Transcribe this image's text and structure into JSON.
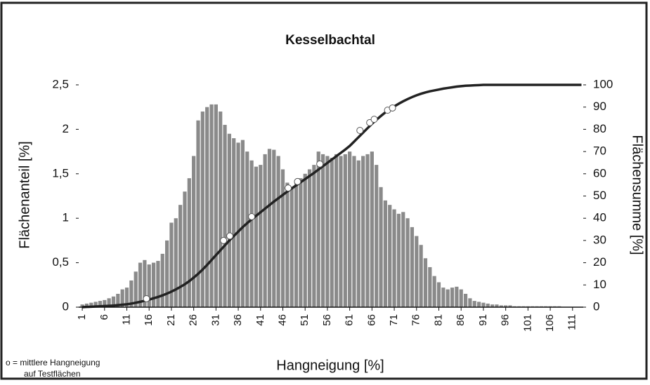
{
  "chart_data": {
    "type": "bar",
    "title": "Kesselbachtal",
    "xlabel": "Hangneigung [%]",
    "ylabel": "Flächenanteil [%]",
    "y2label": "Flächensumme [%]",
    "note": [
      "o = mittlere Hangneigung",
      "auf Testflächen"
    ],
    "x": [
      1,
      2,
      3,
      4,
      5,
      6,
      7,
      8,
      9,
      10,
      11,
      12,
      13,
      14,
      15,
      16,
      17,
      18,
      19,
      20,
      21,
      22,
      23,
      24,
      25,
      26,
      27,
      28,
      29,
      30,
      31,
      32,
      33,
      34,
      35,
      36,
      37,
      38,
      39,
      40,
      41,
      42,
      43,
      44,
      45,
      46,
      47,
      48,
      49,
      50,
      51,
      52,
      53,
      54,
      55,
      56,
      57,
      58,
      59,
      60,
      61,
      62,
      63,
      64,
      65,
      66,
      67,
      68,
      69,
      70,
      71,
      72,
      73,
      74,
      75,
      76,
      77,
      78,
      79,
      80,
      81,
      82,
      83,
      84,
      85,
      86,
      87,
      88,
      89,
      90,
      91,
      92,
      93,
      94,
      95,
      96,
      97,
      98,
      99,
      100,
      101,
      102,
      103,
      104,
      105,
      106,
      107,
      108,
      109,
      110,
      111,
      112,
      113
    ],
    "series": [
      {
        "type": "bar",
        "color": "#8a8a8a",
        "values": [
          0.03,
          0.04,
          0.05,
          0.06,
          0.07,
          0.08,
          0.1,
          0.12,
          0.15,
          0.2,
          0.22,
          0.3,
          0.4,
          0.5,
          0.53,
          0.48,
          0.5,
          0.52,
          0.6,
          0.75,
          0.95,
          1.0,
          1.15,
          1.3,
          1.45,
          1.7,
          2.1,
          2.2,
          2.25,
          2.28,
          2.28,
          2.2,
          2.05,
          1.95,
          1.9,
          1.85,
          1.88,
          1.75,
          1.65,
          1.58,
          1.6,
          1.72,
          1.78,
          1.77,
          1.7,
          1.55,
          1.4,
          1.35,
          1.4,
          1.45,
          1.5,
          1.55,
          1.6,
          1.75,
          1.72,
          1.7,
          1.68,
          1.72,
          1.7,
          1.72,
          1.75,
          1.7,
          1.65,
          1.7,
          1.72,
          1.75,
          1.6,
          1.35,
          1.2,
          1.15,
          1.1,
          1.05,
          1.07,
          1,
          0.9,
          0.8,
          0.7,
          0.55,
          0.45,
          0.35,
          0.28,
          0.22,
          0.2,
          0.22,
          0.23,
          0.2,
          0.15,
          0.1,
          0.07,
          0.06,
          0.05,
          0.04,
          0.03,
          0.03,
          0.02,
          0.02,
          0.02,
          0.01,
          0.01,
          0.01,
          0.01,
          0.01,
          0.01,
          0.01,
          0.01,
          0.01,
          0.01,
          0.01,
          0,
          0,
          0,
          0,
          0
        ]
      },
      {
        "type": "line",
        "axis": "y2",
        "color": "#222222",
        "values": [
          0,
          0.1,
          0.2,
          0.3,
          0.4,
          0.5,
          0.6,
          0.7,
          0.9,
          1.1,
          1.3,
          1.6,
          2,
          2.4,
          2.9,
          3.4,
          4,
          4.6,
          5.3,
          6.1,
          7,
          8,
          9.1,
          10.3,
          11.7,
          13.3,
          15,
          16.9,
          19,
          21.2,
          23.4,
          25.6,
          27.8,
          30,
          32,
          34,
          36,
          37.8,
          39.5,
          41.1,
          42.7,
          44.3,
          45.9,
          47.5,
          49,
          50.5,
          52,
          53.4,
          54.8,
          56.2,
          57.6,
          59,
          60.4,
          61.9,
          63.4,
          64.9,
          66.4,
          67.9,
          69.4,
          70.9,
          72.5,
          74.5,
          76.5,
          78.5,
          80.5,
          82.5,
          84.3,
          86,
          87.6,
          89,
          90.3,
          91.5,
          92.6,
          93.6,
          94.5,
          95.3,
          96,
          96.6,
          97.1,
          97.5,
          97.9,
          98.3,
          98.6,
          98.9,
          99.2,
          99.4,
          99.6,
          99.7,
          99.8,
          99.9,
          100,
          100,
          100,
          100,
          100,
          100,
          100,
          100,
          100,
          100,
          100,
          100,
          100,
          100,
          100,
          100,
          100,
          100,
          100,
          100,
          100,
          100,
          100
        ]
      },
      {
        "type": "scatter",
        "axis": "y2",
        "color": "#ffffff",
        "x": [
          15.4,
          32.7,
          34.1,
          39,
          47.2,
          49.3,
          54.3,
          63.3,
          65.5,
          66.5,
          69.5,
          70.6
        ],
        "values": [
          3.8,
          30,
          32,
          40.7,
          53.6,
          56.5,
          64.4,
          79.5,
          83,
          84.5,
          88.6,
          89.6
        ]
      }
    ],
    "xlim": [
      0.2,
      113.4
    ],
    "xticks": [
      1,
      6,
      11,
      16,
      21,
      26,
      31,
      36,
      41,
      46,
      51,
      56,
      61,
      66,
      71,
      76,
      81,
      86,
      91,
      96,
      101,
      106,
      111
    ],
    "ylim": [
      0,
      2.5
    ],
    "yticks": [
      0,
      {
        "value": 0.5,
        "label": "0,5"
      },
      1,
      {
        "value": 1.5,
        "label": "1,5"
      },
      2,
      {
        "value": 2.5,
        "label": "2,5"
      }
    ],
    "y2lim": [
      0,
      100
    ],
    "y2ticks": [
      0,
      10,
      20,
      30,
      40,
      50,
      60,
      70,
      80,
      90,
      100
    ]
  }
}
